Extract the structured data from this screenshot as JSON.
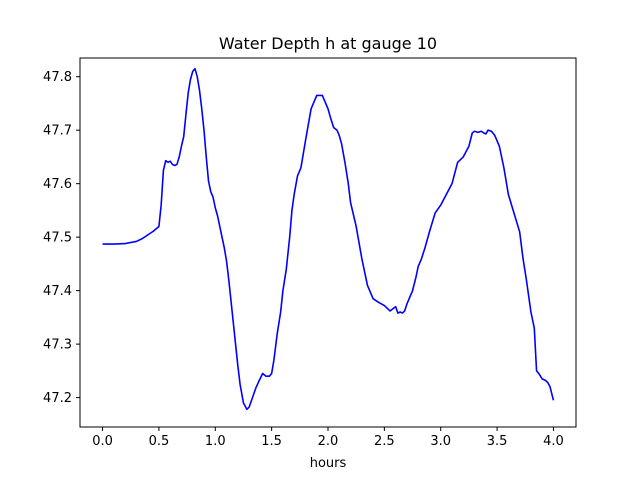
{
  "chart_data": {
    "type": "line",
    "title": "Water Depth h at gauge 10",
    "xlabel": "hours",
    "ylabel": "",
    "xlim": [
      -0.2,
      4.2
    ],
    "ylim": [
      47.145,
      47.835
    ],
    "xticks": [
      0.0,
      0.5,
      1.0,
      1.5,
      2.0,
      2.5,
      3.0,
      3.5,
      4.0
    ],
    "xtick_labels": [
      "0.0",
      "0.5",
      "1.0",
      "1.5",
      "2.0",
      "2.5",
      "3.0",
      "3.5",
      "4.0"
    ],
    "yticks": [
      47.2,
      47.3,
      47.4,
      47.5,
      47.6,
      47.7,
      47.8
    ],
    "ytick_labels": [
      "47.2",
      "47.3",
      "47.4",
      "47.5",
      "47.6",
      "47.7",
      "47.8"
    ],
    "grid": false,
    "series": [
      {
        "color": "#0000ff",
        "x": [
          0.0,
          0.1,
          0.2,
          0.3,
          0.35,
          0.4,
          0.45,
          0.5,
          0.52,
          0.54,
          0.56,
          0.58,
          0.6,
          0.62,
          0.64,
          0.66,
          0.68,
          0.7,
          0.72,
          0.74,
          0.76,
          0.78,
          0.8,
          0.82,
          0.84,
          0.86,
          0.88,
          0.9,
          0.92,
          0.94,
          0.96,
          0.98,
          1.0,
          1.02,
          1.05,
          1.08,
          1.1,
          1.12,
          1.15,
          1.18,
          1.2,
          1.22,
          1.25,
          1.28,
          1.3,
          1.33,
          1.36,
          1.39,
          1.42,
          1.45,
          1.48,
          1.5,
          1.52,
          1.55,
          1.58,
          1.6,
          1.63,
          1.66,
          1.68,
          1.7,
          1.73,
          1.76,
          1.8,
          1.85,
          1.9,
          1.95,
          2.0,
          2.02,
          2.05,
          2.08,
          2.1,
          2.12,
          2.15,
          2.18,
          2.2,
          2.25,
          2.3,
          2.35,
          2.4,
          2.45,
          2.5,
          2.55,
          2.6,
          2.62,
          2.64,
          2.66,
          2.68,
          2.7,
          2.72,
          2.75,
          2.78,
          2.8,
          2.83,
          2.86,
          2.9,
          2.95,
          3.0,
          3.05,
          3.1,
          3.15,
          3.2,
          3.25,
          3.28,
          3.3,
          3.33,
          3.36,
          3.38,
          3.4,
          3.42,
          3.45,
          3.48,
          3.52,
          3.56,
          3.6,
          3.65,
          3.7,
          3.73,
          3.76,
          3.8,
          3.83,
          3.85,
          3.87,
          3.9,
          3.93,
          3.95,
          3.97,
          4.0
        ],
        "y": [
          47.487,
          47.487,
          47.488,
          47.492,
          47.497,
          47.504,
          47.511,
          47.52,
          47.56,
          47.625,
          47.643,
          47.64,
          47.642,
          47.636,
          47.634,
          47.636,
          47.65,
          47.67,
          47.688,
          47.73,
          47.77,
          47.795,
          47.81,
          47.815,
          47.8,
          47.775,
          47.74,
          47.7,
          47.65,
          47.605,
          47.585,
          47.575,
          47.555,
          47.54,
          47.51,
          47.48,
          47.455,
          47.42,
          47.36,
          47.3,
          47.26,
          47.225,
          47.19,
          47.178,
          47.182,
          47.2,
          47.218,
          47.232,
          47.245,
          47.24,
          47.24,
          47.245,
          47.27,
          47.32,
          47.36,
          47.4,
          47.44,
          47.5,
          47.55,
          47.58,
          47.615,
          47.63,
          47.68,
          47.74,
          47.765,
          47.765,
          47.74,
          47.725,
          47.705,
          47.7,
          47.69,
          47.675,
          47.64,
          47.6,
          47.565,
          47.52,
          47.46,
          47.41,
          47.385,
          47.378,
          47.372,
          47.362,
          47.37,
          47.358,
          47.36,
          47.358,
          47.362,
          47.375,
          47.385,
          47.4,
          47.425,
          47.445,
          47.46,
          47.48,
          47.51,
          47.545,
          47.56,
          47.58,
          47.6,
          47.64,
          47.65,
          47.67,
          47.695,
          47.698,
          47.696,
          47.698,
          47.695,
          47.693,
          47.7,
          47.698,
          47.69,
          47.67,
          47.63,
          47.58,
          47.545,
          47.51,
          47.46,
          47.42,
          47.36,
          47.33,
          47.25,
          47.245,
          47.235,
          47.232,
          47.228,
          47.22,
          47.195
        ]
      }
    ]
  }
}
